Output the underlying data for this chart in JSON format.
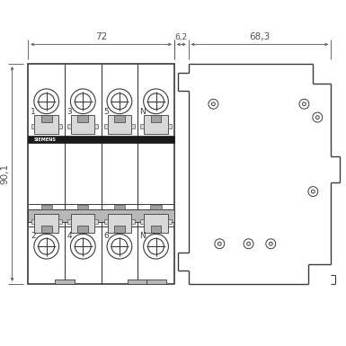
{
  "bg_color": "#ffffff",
  "line_color": "#3a3a3a",
  "dim_color": "#505050",
  "gray_fill": "#b8b8b8",
  "light_gray": "#d8d8d8",
  "medium_gray": "#a0a0a0",
  "fig_width": 3.85,
  "fig_height": 3.85,
  "dim_72": "72",
  "dim_62": "6,2",
  "dim_683": "68,3",
  "dim_901": "90,1",
  "labels_top": [
    "1",
    "3",
    "5",
    "N"
  ],
  "labels_bottom": [
    "2",
    "4",
    "6",
    "N"
  ],
  "siemens_text": "SIEMENS"
}
